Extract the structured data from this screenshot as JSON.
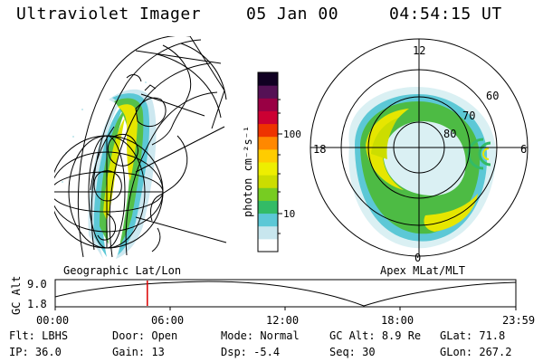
{
  "header": {
    "instrument": "Ultraviolet Imager",
    "date": "05 Jan 00",
    "time": "04:54:15 UT"
  },
  "colorbar": {
    "unit_label": "photon cm⁻²s⁻¹",
    "ticks": [
      "100",
      "10"
    ],
    "ramp_colors": [
      "#ffffff",
      "#c8e6ee",
      "#5cc8d6",
      "#33bb66",
      "#77cc22",
      "#ccdd00",
      "#eeee00",
      "#ffcc00",
      "#ff8800",
      "#ee3300",
      "#cc0033",
      "#990044",
      "#551155",
      "#110022"
    ]
  },
  "left_panel": {
    "caption": "Geographic Lat/Lon"
  },
  "right_panel": {
    "caption": "Apex MLat/MLT",
    "mlt_labels": {
      "top": "12",
      "left": "18",
      "right": "6",
      "bottom": "0"
    },
    "lat_labels": [
      "60",
      "70",
      "80"
    ]
  },
  "altitude_strip": {
    "axis_label": "GC Alt",
    "ymax_label": "9.0",
    "ymin_label": "1.8",
    "time_ticks": [
      "00:00",
      "06:00",
      "12:00",
      "18:00",
      "23:59"
    ],
    "current_fraction": 0.2
  },
  "status": {
    "filter": {
      "label": "Flt:",
      "value": "LBHS"
    },
    "door": {
      "label": "Door:",
      "value": "Open"
    },
    "mode": {
      "label": "Mode:",
      "value": "Normal"
    },
    "gc_alt": {
      "label": "GC Alt:",
      "value": "8.9 Re"
    },
    "glat": {
      "label": "GLat:",
      "value": "71.8"
    },
    "ip": {
      "label": "IP:",
      "value": "36.0"
    },
    "gain": {
      "label": "Gain:",
      "value": "13"
    },
    "dsp": {
      "label": "Dsp:",
      "value": "-5.4"
    },
    "seq": {
      "label": "Seq:",
      "value": "30"
    },
    "glon": {
      "label": "GLon:",
      "value": "267.2"
    }
  }
}
